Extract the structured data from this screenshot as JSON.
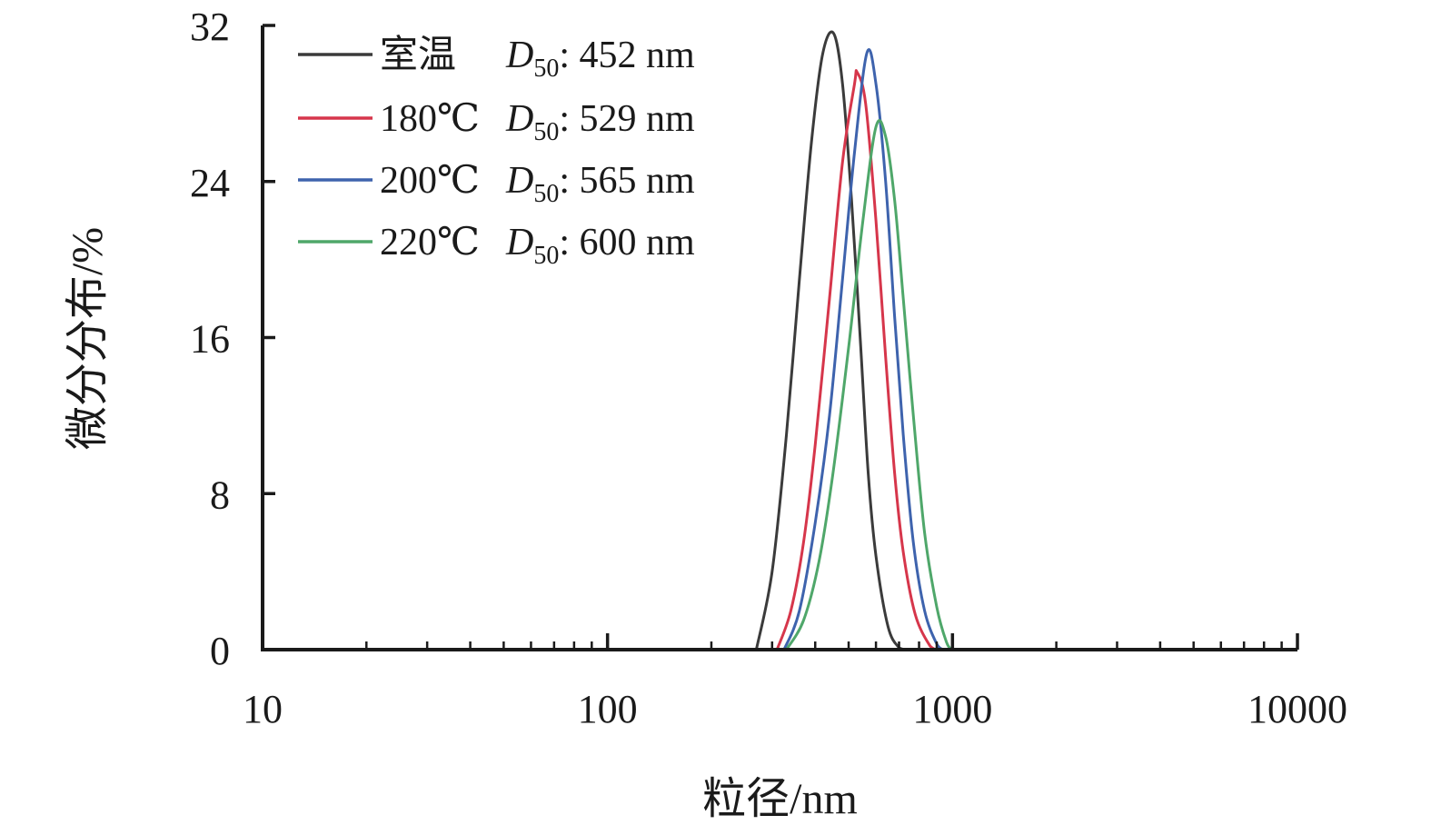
{
  "chart_data": {
    "type": "line",
    "xlabel": "粒径/nm",
    "ylabel": "微分分布/%",
    "x_scale": "log",
    "xlim": [
      10,
      10000
    ],
    "ylim": [
      0,
      32
    ],
    "x_ticks": [
      10,
      100,
      1000,
      10000
    ],
    "x_tick_labels": [
      "10",
      "100",
      "1000",
      "10000"
    ],
    "y_ticks": [
      0,
      8,
      16,
      24,
      32
    ],
    "y_tick_labels": [
      "0",
      "8",
      "16",
      "24",
      "32"
    ],
    "grid": false,
    "legend_position": "top-left",
    "series": [
      {
        "name": "室温",
        "label_prefix": "室温",
        "d50_value": "452 nm",
        "color": "#3b3b3b",
        "x": [
          270,
          300,
          330,
          360,
          390,
          420,
          452,
          480,
          510,
          540,
          570,
          600,
          650,
          700,
          735
        ],
        "y": [
          0,
          4.0,
          11.0,
          19.0,
          26.0,
          30.5,
          31.6,
          29.0,
          23.0,
          16.0,
          9.0,
          4.8,
          1.2,
          0.1,
          0
        ]
      },
      {
        "name": "180℃",
        "label_prefix": "180℃",
        "d50_value": "529 nm",
        "color": "#d6364b",
        "x": [
          310,
          340,
          370,
          400,
          440,
          480,
          520,
          529,
          560,
          600,
          640,
          680,
          720,
          780,
          860,
          900
        ],
        "y": [
          0,
          2.0,
          5.5,
          10.5,
          18.0,
          25.0,
          29.0,
          29.6,
          28.0,
          22.0,
          15.0,
          9.0,
          5.0,
          1.8,
          0.2,
          0
        ]
      },
      {
        "name": "200℃",
        "label_prefix": "200℃",
        "d50_value": "565 nm",
        "color": "#3e63ad",
        "x": [
          325,
          360,
          400,
          440,
          480,
          520,
          565,
          600,
          640,
          680,
          720,
          770,
          830,
          900,
          940
        ],
        "y": [
          0,
          2.0,
          6.5,
          12.0,
          19.0,
          25.5,
          30.6,
          29.0,
          24.0,
          17.0,
          11.0,
          5.5,
          2.0,
          0.3,
          0
        ]
      },
      {
        "name": "220℃",
        "label_prefix": "220℃",
        "d50_value": "600 nm",
        "color": "#4fa76a",
        "x": [
          330,
          370,
          410,
          450,
          500,
          550,
          600,
          640,
          680,
          720,
          770,
          830,
          900,
          960,
          995
        ],
        "y": [
          0,
          1.5,
          4.5,
          9.0,
          15.5,
          22.0,
          26.8,
          26.3,
          23.0,
          18.0,
          12.0,
          6.0,
          2.2,
          0.4,
          0
        ]
      }
    ]
  }
}
